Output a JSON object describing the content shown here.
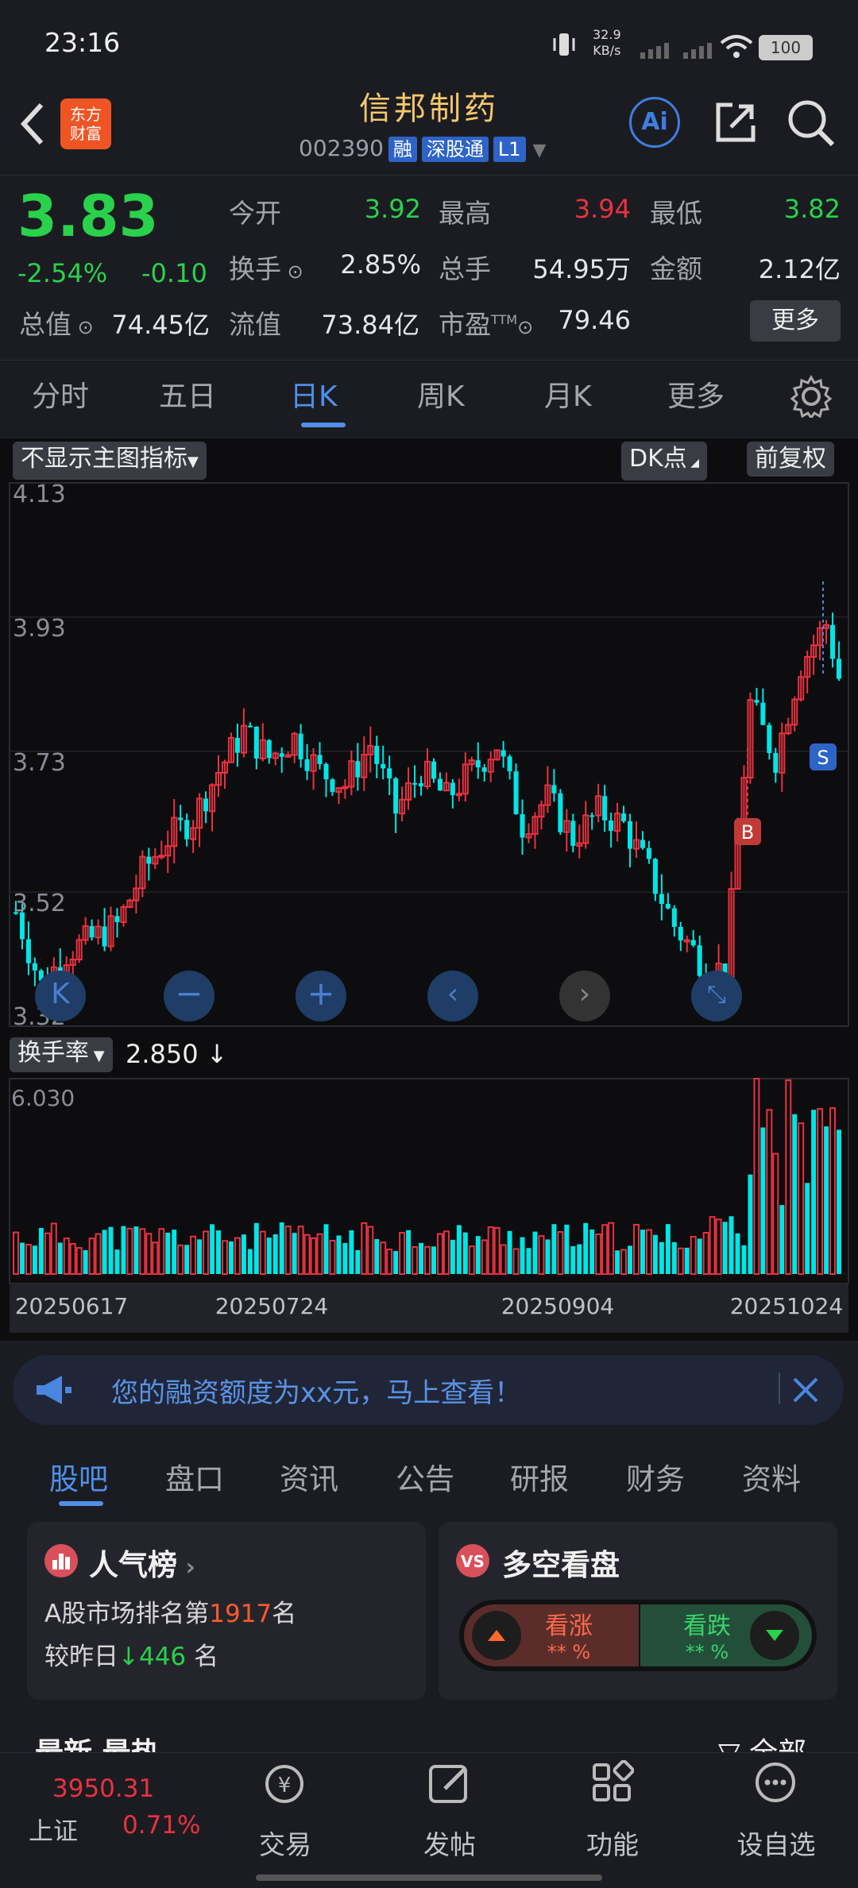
{
  "status": {
    "time": "23:16",
    "net_speed": "32.9",
    "net_unit": "KB/s",
    "battery": "100"
  },
  "header": {
    "title": "信邦制药",
    "code": "002390",
    "tags": [
      "融",
      "深股通",
      "L1"
    ],
    "logo_line1": "东方",
    "logo_line2": "财富",
    "ai_label": "Ai"
  },
  "quote": {
    "price": "3.83",
    "change_pct": "-2.54%",
    "change": "-0.10",
    "open_label": "今开",
    "open": "3.92",
    "high_label": "最高",
    "high": "3.94",
    "low_label": "最低",
    "low": "3.82",
    "turnover_label": "换手",
    "turnover": "2.85%",
    "volume_label": "总手",
    "volume": "54.95万",
    "amount_label": "金额",
    "amount": "2.12亿",
    "mktcap_label": "总值",
    "mktcap": "74.45亿",
    "float_label": "流值",
    "float": "73.84亿",
    "pe_label": "市盈",
    "pe_sup": "TTM",
    "pe": "79.46",
    "more": "更多"
  },
  "ktabs": [
    "分时",
    "五日",
    "日K",
    "周K",
    "月K",
    "更多"
  ],
  "ktab_active": 2,
  "chart_controls": {
    "indicator": "不显示主图指标",
    "dk": "DK点",
    "adjust": "前复权",
    "sub_indicator": "换手率",
    "sub_value": "2.850",
    "buy_mark": "B",
    "sell_mark": "S"
  },
  "chart_data": {
    "type": "candlestick",
    "y_ticks": [
      "4.13",
      "3.93",
      "3.73",
      "3.52",
      "3.32"
    ],
    "ylim": [
      3.32,
      4.13
    ],
    "x_ticks": [
      "20250617",
      "20250724",
      "20250904",
      "20251024"
    ],
    "colors": {
      "up": "#e9323f",
      "down": "#00e5e5"
    },
    "sub_ytick": "6.030",
    "sub_ylim": [
      0,
      6.03
    ]
  },
  "banner": {
    "text": "您的融资额度为xx元，马上查看！"
  },
  "ftabs": [
    "股吧",
    "盘口",
    "资讯",
    "公告",
    "研报",
    "财务",
    "资料"
  ],
  "ftab_active": 0,
  "popularity": {
    "title": "人气榜",
    "line1_prefix": "A股市场排名第",
    "rank": "1917",
    "line1_suffix": "名",
    "line2_prefix": "较昨日",
    "delta": "446",
    "line2_suffix": "名"
  },
  "sentiment": {
    "title": "多空看盘",
    "bull": "看涨",
    "bull_pct": "** %",
    "bear": "看跌",
    "bear_pct": "** %"
  },
  "partial_tabs": {
    "left": "最新",
    "left2": "最热",
    "right": "全部"
  },
  "bottom": {
    "index_value": "3950.31",
    "index_name": "上证",
    "index_pct": "0.71%",
    "nav": [
      "交易",
      "发帖",
      "功能",
      "设自选"
    ]
  }
}
